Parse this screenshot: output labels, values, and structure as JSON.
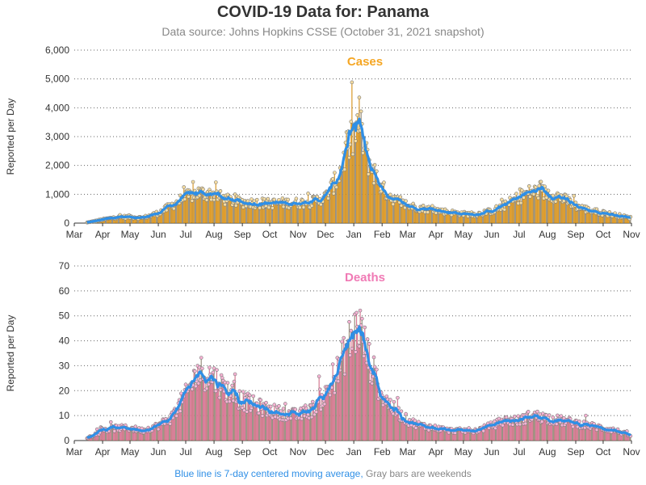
{
  "title": "COVID-19 Data for: Panama",
  "subtitle": "Data source: Johns Hopkins CSSE (October 31, 2021 snapshot)",
  "footnote": {
    "blue_part": "Blue line is 7-day centered moving average,",
    "gray_part": "Gray bars are weekends"
  },
  "colors": {
    "cases_bar": "#f5a623",
    "deaths_bar": "#f07ab5",
    "moving_average": "#2f8fe6",
    "weekend_bar": "#9a9a9a",
    "cases_title": "#f5a623",
    "deaths_title": "#f07ab5"
  },
  "chart_data": [
    {
      "type": "bar",
      "title": "Cases",
      "ylabel": "Reported per Day",
      "xlabel": "",
      "ylim": [
        0,
        6000
      ],
      "yticks": [
        "0",
        "1,000",
        "2,000",
        "3,000",
        "4,000",
        "5,000",
        "6,000"
      ],
      "ytick_values": [
        0,
        1000,
        2000,
        3000,
        4000,
        5000,
        6000
      ],
      "xticks": [
        "Mar",
        "Apr",
        "May",
        "Jun",
        "Jul",
        "Aug",
        "Sep",
        "Oct",
        "Nov",
        "Dec",
        "Jan",
        "Feb",
        "Mar",
        "Apr",
        "May",
        "Jun",
        "Jul",
        "Aug",
        "Sep",
        "Oct",
        "Nov"
      ],
      "grid": "horizontal dotted",
      "series": [
        {
          "x": [
            "2020-03-15",
            "2020-04-01",
            "2020-04-15",
            "2020-05-01",
            "2020-05-15",
            "2020-06-01",
            "2020-06-15",
            "2020-07-01",
            "2020-07-15",
            "2020-08-01",
            "2020-08-15",
            "2020-09-01",
            "2020-09-15",
            "2020-10-01",
            "2020-10-15",
            "2020-11-01",
            "2020-11-15",
            "2020-12-01",
            "2020-12-15",
            "2020-12-25",
            "2021-01-01",
            "2021-01-07",
            "2021-01-15",
            "2021-02-01",
            "2021-02-15",
            "2021-03-01",
            "2021-03-15",
            "2021-04-01",
            "2021-04-15",
            "2021-05-01",
            "2021-05-15",
            "2021-06-01",
            "2021-06-15",
            "2021-07-01",
            "2021-07-15",
            "2021-08-01",
            "2021-08-15",
            "2021-09-01",
            "2021-09-15",
            "2021-10-01",
            "2021-10-15",
            "2021-10-31"
          ],
          "values": [
            20,
            120,
            200,
            220,
            180,
            350,
            600,
            900,
            1050,
            1000,
            800,
            720,
            700,
            680,
            700,
            700,
            720,
            900,
            1600,
            2600,
            3000,
            3550,
            2300,
            1200,
            800,
            600,
            520,
            450,
            380,
            320,
            300,
            420,
            600,
            900,
            1100,
            1050,
            900,
            600,
            450,
            350,
            280,
            180
          ]
        }
      ]
    },
    {
      "type": "bar",
      "title": "Deaths",
      "ylabel": "Reported per Day",
      "xlabel": "",
      "ylim": [
        0,
        70
      ],
      "yticks": [
        "0",
        "10",
        "20",
        "30",
        "40",
        "50",
        "60",
        "70"
      ],
      "ytick_values": [
        0,
        10,
        20,
        30,
        40,
        50,
        60,
        70
      ],
      "xticks": [
        "Mar",
        "Apr",
        "May",
        "Jun",
        "Jul",
        "Aug",
        "Sep",
        "Oct",
        "Nov",
        "Dec",
        "Jan",
        "Feb",
        "Mar",
        "Apr",
        "May",
        "Jun",
        "Jul",
        "Aug",
        "Sep",
        "Oct",
        "Nov"
      ],
      "grid": "horizontal dotted",
      "series": [
        {
          "x": [
            "2020-03-15",
            "2020-04-01",
            "2020-04-15",
            "2020-05-01",
            "2020-05-15",
            "2020-06-01",
            "2020-06-15",
            "2020-07-01",
            "2020-07-15",
            "2020-08-01",
            "2020-08-15",
            "2020-09-01",
            "2020-09-15",
            "2020-10-01",
            "2020-10-15",
            "2020-11-01",
            "2020-11-15",
            "2020-12-01",
            "2020-12-15",
            "2020-12-25",
            "2021-01-01",
            "2021-01-07",
            "2021-01-15",
            "2021-02-01",
            "2021-02-15",
            "2021-03-01",
            "2021-03-15",
            "2021-04-01",
            "2021-04-15",
            "2021-05-01",
            "2021-05-15",
            "2021-06-01",
            "2021-06-15",
            "2021-07-01",
            "2021-07-15",
            "2021-08-01",
            "2021-08-15",
            "2021-09-01",
            "2021-09-15",
            "2021-10-01",
            "2021-10-15",
            "2021-10-31"
          ],
          "values": [
            1,
            4,
            5,
            5,
            4,
            6,
            9,
            18,
            28,
            25,
            20,
            16,
            14,
            12,
            11,
            10,
            12,
            18,
            28,
            38,
            43,
            46,
            35,
            18,
            12,
            8,
            6,
            5,
            4,
            4,
            4,
            6,
            8,
            8,
            10,
            9,
            8,
            7,
            6,
            5,
            4,
            2
          ]
        }
      ]
    }
  ]
}
